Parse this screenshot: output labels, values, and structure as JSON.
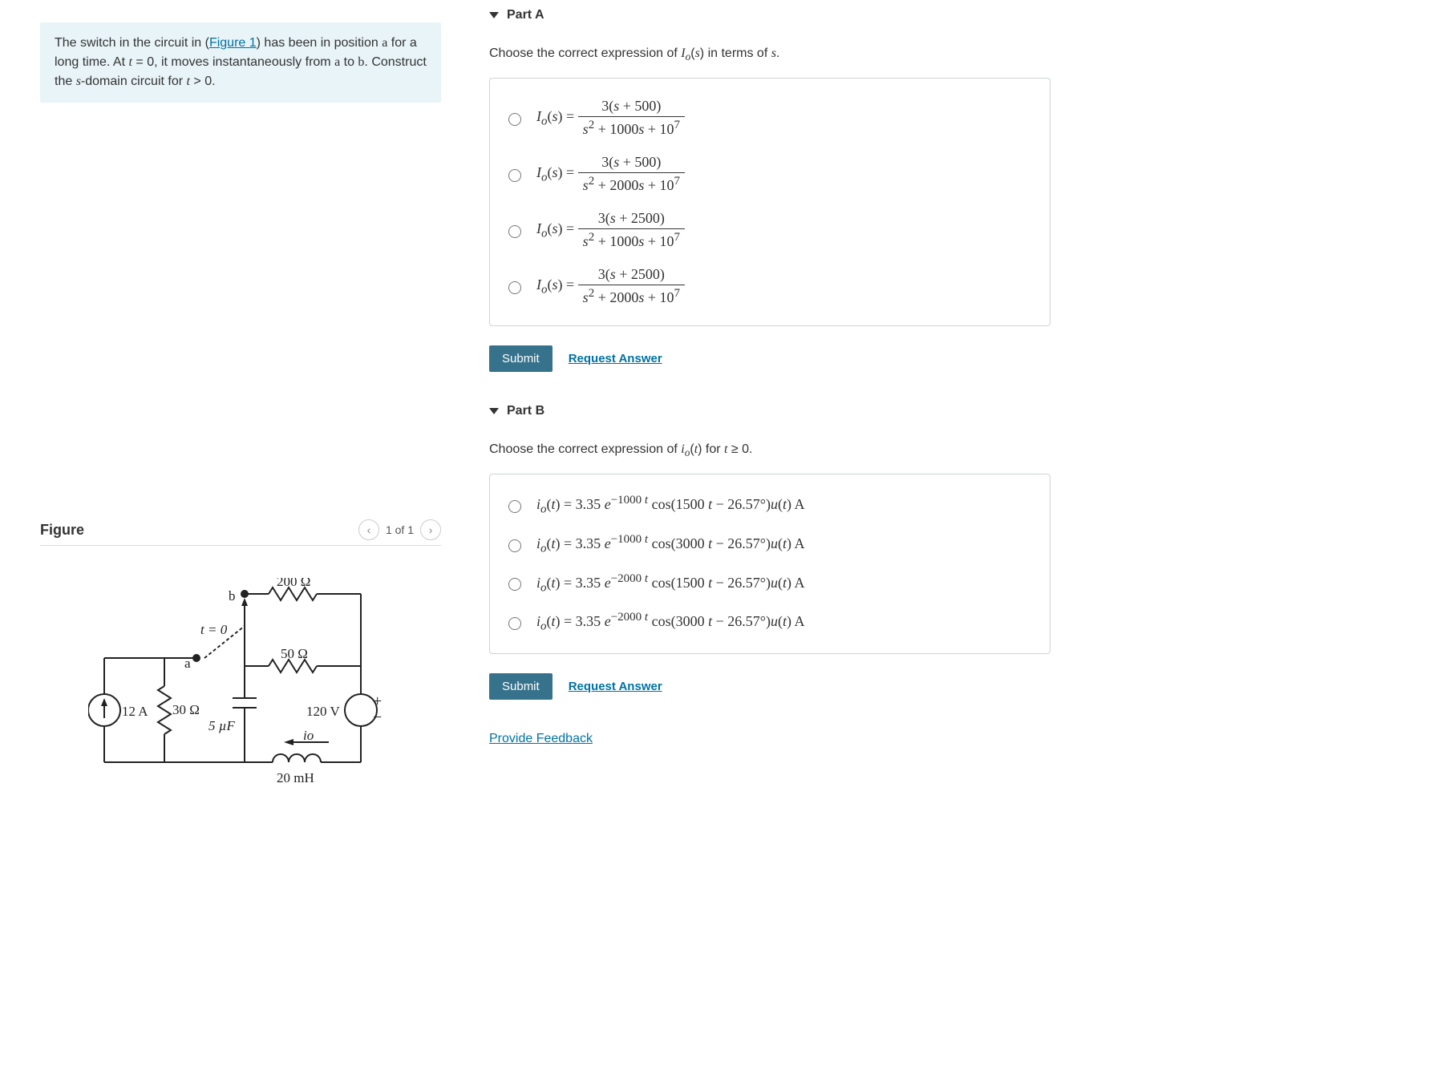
{
  "problem": {
    "text_html": "The switch in the circuit in (<a data-name=\"figure-link\" data-interactable=\"true\">Figure 1</a>) has been in position <span class=\"mathrm\">a</span> for a long time. At <span class=\"math\">t</span> = 0, it moves instantaneously from <span class=\"mathrm\">a</span> to <span class=\"mathrm\">b</span>. Construct the <span class=\"math\">s</span>-domain circuit for <span class=\"math\">t</span> &gt; 0."
  },
  "figure": {
    "title": "Figure",
    "nav_label": "1 of 1",
    "labels": {
      "r_top": "200 Ω",
      "b": "b",
      "t0": "t = 0",
      "a": "a",
      "r_mid": "50 Ω",
      "i_src": "12 A",
      "r_left": "30 Ω",
      "cap": "5 µF",
      "v_src": "120 V",
      "io": "io",
      "ind": "20 mH"
    }
  },
  "partA": {
    "label": "Part A",
    "prompt_html": "Choose the correct expression of <span class=\"math\">I<sub>o</sub></span>(<span class=\"math\">s</span>) in terms of <span class=\"math\">s</span>.",
    "options": [
      {
        "num": "3(<i>s</i> + 500)",
        "den": "<i>s</i><sup>2</sup> + 1000<i>s</i> + 10<sup>7</sup>"
      },
      {
        "num": "3(<i>s</i> + 500)",
        "den": "<i>s</i><sup>2</sup> + 2000<i>s</i> + 10<sup>7</sup>"
      },
      {
        "num": "3(<i>s</i> + 2500)",
        "den": "<i>s</i><sup>2</sup> + 1000<i>s</i> + 10<sup>7</sup>"
      },
      {
        "num": "3(<i>s</i> + 2500)",
        "den": "<i>s</i><sup>2</sup> + 2000<i>s</i> + 10<sup>7</sup>"
      }
    ],
    "lhs_html": "<i>I<sub>o</sub></i>(<i>s</i>) =",
    "submit": "Submit",
    "request": "Request Answer"
  },
  "partB": {
    "label": "Part B",
    "prompt_html": "Choose the correct expression of <span class=\"math\">i<sub>o</sub></span>(<span class=\"math\">t</span>) for <span class=\"math\">t</span> ≥ 0.",
    "options": [
      "<i>i<sub>o</sub></i>(<i>t</i>) = 3.35 <i>e</i><sup>−1000 <i>t</i></sup> cos(1500 <i>t</i> − 26.57°)<i>u</i>(<i>t</i>) A",
      "<i>i<sub>o</sub></i>(<i>t</i>) = 3.35 <i>e</i><sup>−1000 <i>t</i></sup> cos(3000 <i>t</i> − 26.57°)<i>u</i>(<i>t</i>) A",
      "<i>i<sub>o</sub></i>(<i>t</i>) = 3.35 <i>e</i><sup>−2000 <i>t</i></sup> cos(1500 <i>t</i> − 26.57°)<i>u</i>(<i>t</i>) A",
      "<i>i<sub>o</sub></i>(<i>t</i>) = 3.35 <i>e</i><sup>−2000 <i>t</i></sup> cos(3000 <i>t</i> − 26.57°)<i>u</i>(<i>t</i>) A"
    ],
    "submit": "Submit",
    "request": "Request Answer"
  },
  "feedback_label": "Provide Feedback"
}
